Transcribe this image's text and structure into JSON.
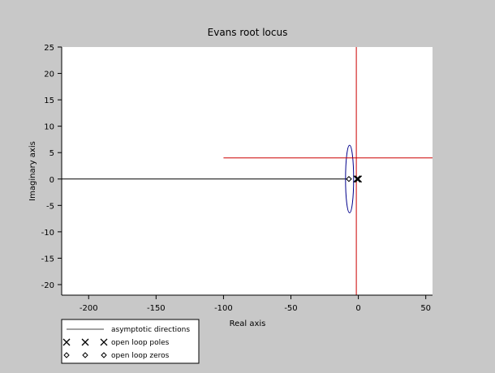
{
  "chart_data": {
    "type": "line",
    "title": "Evans root locus",
    "xlabel": "Real axis",
    "ylabel": "Imaginary axis",
    "xlim": [
      -220,
      55
    ],
    "ylim": [
      -22,
      25
    ],
    "xticks": [
      -200,
      -150,
      -100,
      -50,
      0,
      50
    ],
    "yticks": [
      -20,
      -15,
      -10,
      -5,
      0,
      5,
      10,
      15,
      20,
      25
    ],
    "xtick_labels": [
      "-200",
      "-150",
      "-100",
      "-50",
      "0",
      "50"
    ],
    "ytick_labels": [
      "-20",
      "-15",
      "-10",
      "-5",
      "0",
      "5",
      "10",
      "15",
      "20",
      "25"
    ],
    "grid": false,
    "colors": {
      "background": "#c8c8c8",
      "plot_area": "#ffffff",
      "real_axis_locus": "#000000",
      "breakaway_locus": "#00008b",
      "asymptotes": "#cc0000",
      "markers": "#000000"
    },
    "series": [
      {
        "kind": "root-locus-branch",
        "points": [
          [
            -5,
            0
          ],
          [
            -220,
            0
          ]
        ]
      },
      {
        "kind": "root-locus-loop",
        "center": [
          -6.5,
          0
        ],
        "radius_x": 3,
        "radius_y": 6.4
      },
      {
        "kind": "asymptote",
        "points": [
          [
            -100,
            4
          ],
          [
            55,
            4
          ]
        ]
      },
      {
        "kind": "asymptote",
        "points": [
          [
            -1.5,
            -22
          ],
          [
            -1.5,
            25
          ]
        ]
      }
    ],
    "open_loop_poles": [
      [
        0,
        0
      ],
      [
        -1,
        0
      ]
    ],
    "open_loop_zeros": [
      [
        -7,
        0
      ]
    ],
    "legend": {
      "position": "bottom-left",
      "entries": [
        {
          "label": "asymptotic directions",
          "marker": "line"
        },
        {
          "label": "open loop poles",
          "marker": "x"
        },
        {
          "label": "open loop zeros",
          "marker": "diamond"
        }
      ]
    }
  }
}
